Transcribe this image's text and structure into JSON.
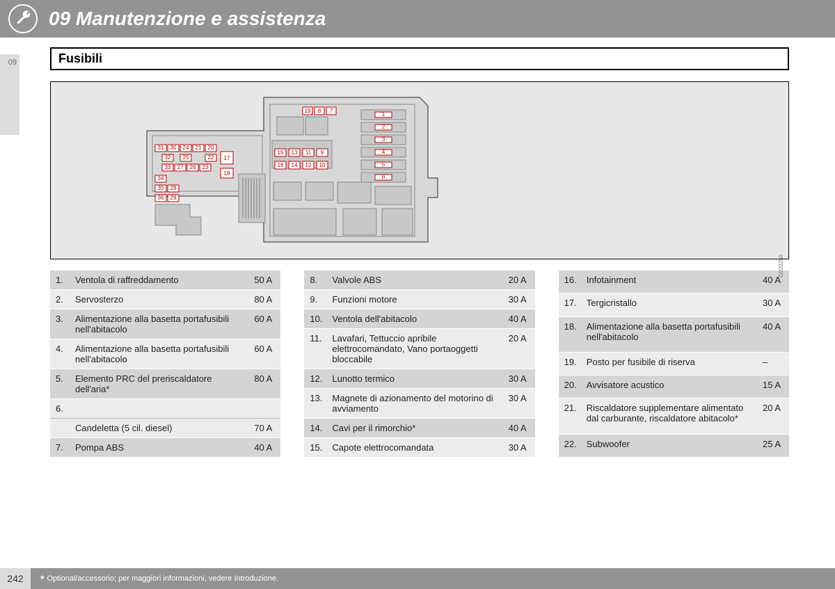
{
  "chapter": {
    "title": "09 Manutenzione e assistenza"
  },
  "sideTab": "09",
  "section": {
    "heading": "Fusibili"
  },
  "diagram": {
    "reference": "G020250",
    "topSmall": [
      {
        "n": "19"
      },
      {
        "n": "8"
      },
      {
        "n": "7"
      }
    ],
    "midBlock": [
      [
        "15",
        "13",
        "11",
        "9"
      ],
      [
        "16",
        "14",
        "12",
        "10"
      ]
    ],
    "relays": [
      "1",
      "2",
      "3",
      "4",
      "5",
      "6"
    ],
    "leftBlock": {
      "row1": [
        "31",
        "30",
        "24",
        "21",
        "20"
      ],
      "cell17": "17",
      "row2": [
        "32",
        "25",
        "22"
      ],
      "row3": [
        "33",
        "27",
        "26",
        "23",
        "18"
      ],
      "row4": [
        "34"
      ],
      "row5": [
        "35",
        "28"
      ],
      "row6": [
        "36",
        "29"
      ]
    }
  },
  "tables": {
    "col1": [
      {
        "n": "1.",
        "desc": "Ventola di raffreddamento",
        "amp": "50 A"
      },
      {
        "n": "2.",
        "desc": "Servosterzo",
        "amp": "80 A"
      },
      {
        "n": "3.",
        "desc": "Alimentazione alla basetta portafusibili nell'abitacolo",
        "amp": "60 A"
      },
      {
        "n": "4.",
        "desc": "Alimentazione alla basetta portafusibili nell'abitacolo",
        "amp": "60 A"
      },
      {
        "n": "5.",
        "desc": "Elemento PRC del preriscaldatore dell'aria*",
        "amp": "80 A"
      },
      {
        "n": "6.",
        "desc": "",
        "amp": ""
      },
      {
        "n": "",
        "desc": "Candeletta (5 cil. diesel)",
        "amp": "70 A"
      },
      {
        "n": "7.",
        "desc": "Pompa ABS",
        "amp": "40 A"
      }
    ],
    "col2": [
      {
        "n": "8.",
        "desc": "Valvole ABS",
        "amp": "20 A"
      },
      {
        "n": "9.",
        "desc": "Funzioni motore",
        "amp": "30 A"
      },
      {
        "n": "10.",
        "desc": "Ventola dell'abitacolo",
        "amp": "40 A"
      },
      {
        "n": "11.",
        "desc": "Lavafari, Tettuccio apribile elettrocomandato, Vano portaoggetti bloccabile",
        "amp": "20 A"
      },
      {
        "n": "12.",
        "desc": "Lunotto termico",
        "amp": "30 A"
      },
      {
        "n": "13.",
        "desc": "Magnete di azionamento del motorino di avviamento",
        "amp": "30 A"
      },
      {
        "n": "14.",
        "desc": "Cavi per il rimorchio*",
        "amp": "40 A"
      },
      {
        "n": "15.",
        "desc": "Capote elettrocomandata",
        "amp": "30 A"
      }
    ],
    "col3": [
      {
        "n": "16.",
        "desc": "Infotainment",
        "amp": "40 A"
      },
      {
        "n": "17.",
        "desc": "Tergicristallo",
        "amp": "30 A"
      },
      {
        "n": "18.",
        "desc": "Alimentazione alla basetta portafusibili nell'abitacolo",
        "amp": "40 A"
      },
      {
        "n": "19.",
        "desc": "Posto per fusibile di riserva",
        "amp": "–"
      },
      {
        "n": "20.",
        "desc": "Avvisatore acustico",
        "amp": "15 A"
      },
      {
        "n": "21.",
        "desc": "Riscaldatore supplementare alimentato dal carburante, riscaldatore abitacolo*",
        "amp": "20 A"
      },
      {
        "n": "22.",
        "desc": "Subwoofer",
        "amp": "25 A"
      }
    ]
  },
  "footer": {
    "page": "242",
    "note": "Optional/accessorio; per maggiori informazioni, vedere Introduzione."
  }
}
